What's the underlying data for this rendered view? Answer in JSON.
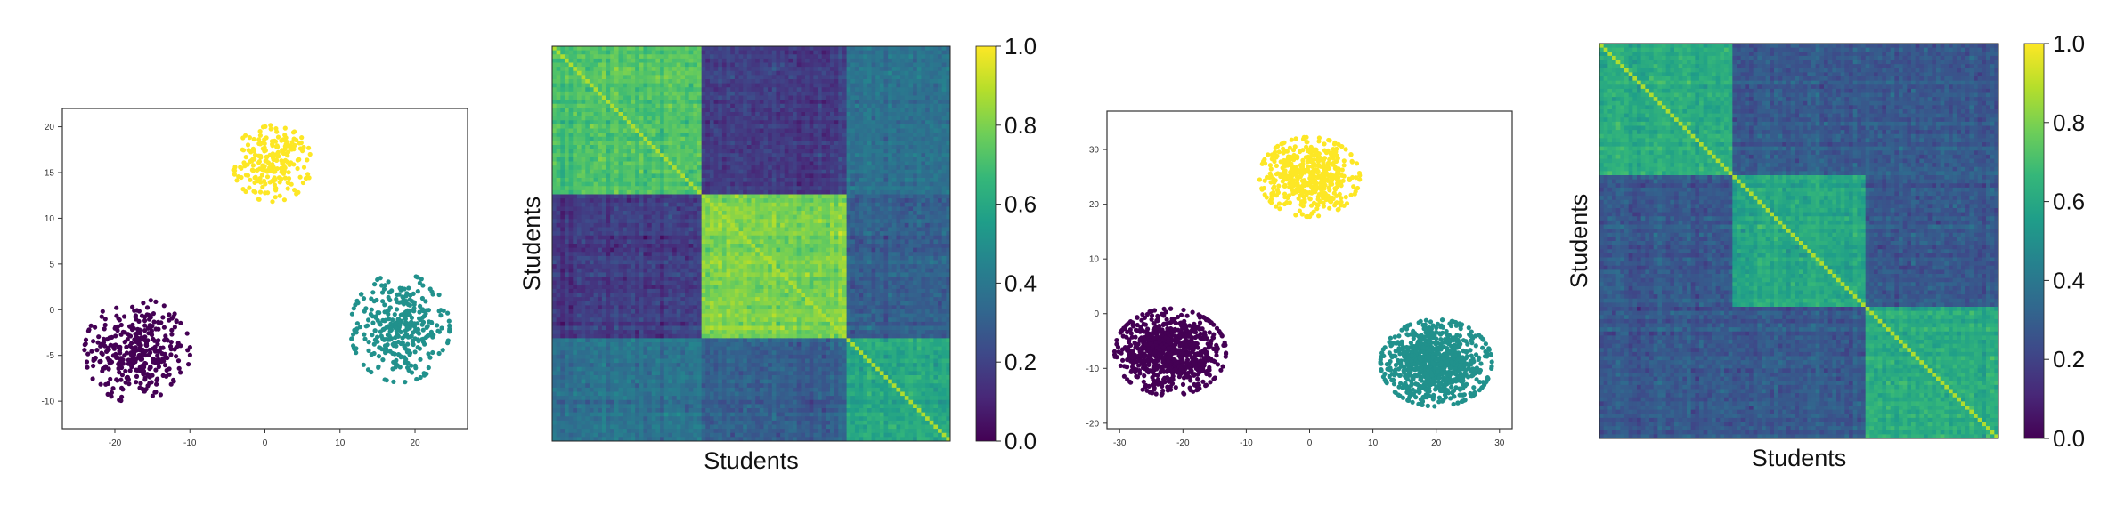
{
  "chart_data": [
    {
      "type": "scatter",
      "xlim": [
        -27,
        27
      ],
      "ylim": [
        -13,
        22
      ],
      "xticks": [
        -20,
        -10,
        0,
        10,
        20
      ],
      "yticks": [
        -10,
        -5,
        0,
        5,
        10,
        15,
        20
      ],
      "grid": false,
      "series": [
        {
          "color": "#440154",
          "center": [
            -17,
            -4.5
          ],
          "spread": [
            3.2,
            2.6
          ],
          "count": 360
        },
        {
          "color": "#fde725",
          "center": [
            1,
            16
          ],
          "spread": [
            2.4,
            1.9
          ],
          "count": 230
        },
        {
          "color": "#21918c",
          "center": [
            18,
            -2
          ],
          "spread": [
            3.0,
            2.7
          ],
          "count": 340
        }
      ]
    },
    {
      "type": "heatmap",
      "xlabel": "Students",
      "ylabel": "Students",
      "colorbar": {
        "ticks": [
          "0.0",
          "0.2",
          "0.4",
          "0.6",
          "0.8",
          "1.0"
        ],
        "range": [
          0,
          1
        ]
      },
      "blocks": [
        0.37,
        0.37,
        0.26
      ],
      "block_values": [
        [
          0.72,
          0.18,
          0.38
        ],
        [
          0.18,
          0.8,
          0.3
        ],
        [
          0.38,
          0.3,
          0.6
        ]
      ],
      "diagonal": 1.0
    },
    {
      "type": "scatter",
      "xlim": [
        -32,
        32
      ],
      "ylim": [
        -21,
        37
      ],
      "xticks": [
        -30,
        -20,
        -10,
        0,
        10,
        20,
        30
      ],
      "yticks": [
        -20,
        -10,
        0,
        10,
        20,
        30
      ],
      "grid": false,
      "series": [
        {
          "color": "#440154",
          "center": [
            -22,
            -7
          ],
          "spread": [
            4.0,
            3.6
          ],
          "count": 800
        },
        {
          "color": "#fde725",
          "center": [
            0,
            25
          ],
          "spread": [
            3.6,
            3.3
          ],
          "count": 480
        },
        {
          "color": "#21918c",
          "center": [
            20,
            -9
          ],
          "spread": [
            4.0,
            3.6
          ],
          "count": 860
        }
      ]
    },
    {
      "type": "heatmap",
      "xlabel": "Students",
      "ylabel": "Students",
      "colorbar": {
        "ticks": [
          "0.0",
          "0.2",
          "0.4",
          "0.6",
          "0.8",
          "1.0"
        ],
        "range": [
          0,
          1
        ]
      },
      "blocks": [
        0.33,
        0.34,
        0.33
      ],
      "block_values": [
        [
          0.62,
          0.28,
          0.28
        ],
        [
          0.28,
          0.6,
          0.28
        ],
        [
          0.28,
          0.28,
          0.62
        ]
      ],
      "diagonal": 1.0
    }
  ],
  "colors": {
    "viridis": [
      "#440154",
      "#482878",
      "#3e4989",
      "#31688e",
      "#26828e",
      "#1f9e89",
      "#35b779",
      "#6ece58",
      "#b5de2b",
      "#fde725"
    ]
  }
}
